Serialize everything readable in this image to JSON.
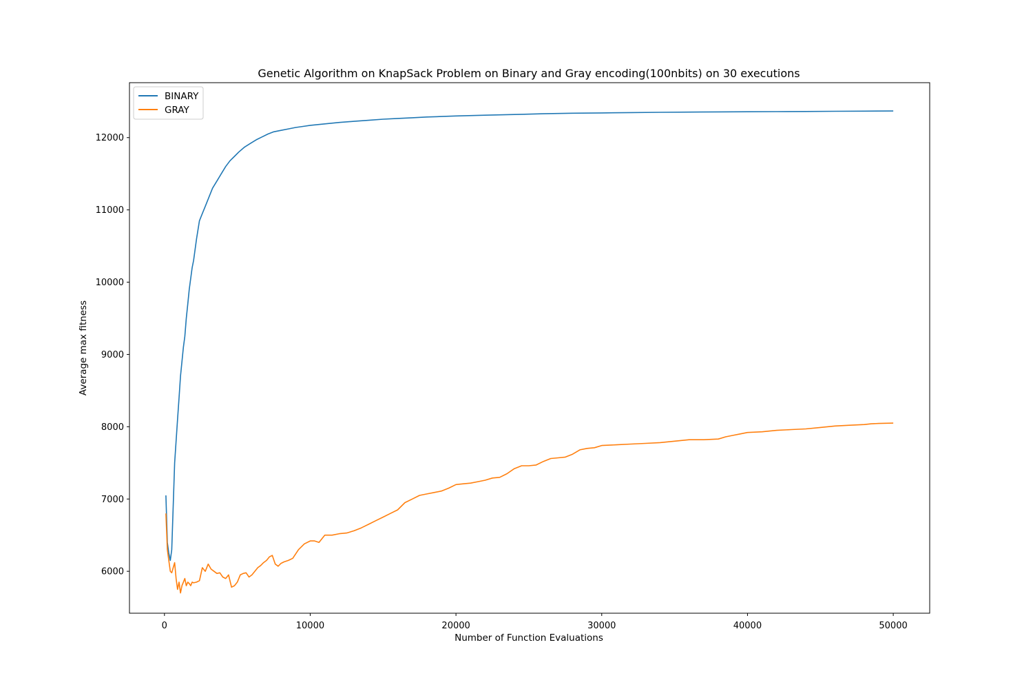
{
  "chart_data": {
    "type": "line",
    "title": "Genetic Algorithm on KnapSack Problem on Binary and Gray encoding(100nbits) on 30 executions",
    "xlabel": "Number of Function Evaluations",
    "ylabel": "Average max fitness",
    "xlim": [
      -2400,
      52500
    ],
    "ylim": [
      5420,
      12760
    ],
    "xticks": [
      0,
      10000,
      20000,
      30000,
      40000,
      50000
    ],
    "yticks": [
      6000,
      7000,
      8000,
      9000,
      10000,
      11000,
      12000
    ],
    "grid": false,
    "legend_position": "top-left",
    "series": [
      {
        "name": "BINARY",
        "color": "#1f77b4",
        "x": [
          100,
          200,
          300,
          400,
          500,
          600,
          700,
          800,
          900,
          1000,
          1100,
          1200,
          1300,
          1400,
          1500,
          1600,
          1700,
          1800,
          1900,
          2000,
          2200,
          2400,
          2600,
          2800,
          3000,
          3300,
          3600,
          3900,
          4200,
          4500,
          4800,
          5100,
          5500,
          5900,
          6300,
          6700,
          7100,
          7500,
          8000,
          8500,
          9000,
          9500,
          10000,
          11000,
          12000,
          13000,
          14000,
          15000,
          16000,
          17000,
          18000,
          19000,
          20000,
          22000,
          24000,
          26000,
          28000,
          30000,
          32000,
          34000,
          36000,
          38000,
          40000,
          42000,
          44000,
          46000,
          48000,
          50000
        ],
        "y": [
          7050,
          6400,
          6250,
          6150,
          6300,
          6900,
          7500,
          7800,
          8100,
          8400,
          8700,
          8900,
          9100,
          9250,
          9500,
          9700,
          9900,
          10050,
          10200,
          10300,
          10600,
          10850,
          10950,
          11050,
          11150,
          11300,
          11400,
          11500,
          11600,
          11680,
          11740,
          11800,
          11870,
          11920,
          11970,
          12010,
          12050,
          12080,
          12100,
          12120,
          12140,
          12155,
          12170,
          12190,
          12210,
          12225,
          12240,
          12255,
          12265,
          12275,
          12285,
          12292,
          12300,
          12310,
          12320,
          12330,
          12338,
          12342,
          12346,
          12350,
          12353,
          12356,
          12358,
          12360,
          12362,
          12364,
          12366,
          12368
        ]
      },
      {
        "name": "GRAY",
        "color": "#ff7f0e",
        "x": [
          100,
          200,
          300,
          400,
          500,
          600,
          700,
          800,
          900,
          1000,
          1100,
          1200,
          1300,
          1400,
          1500,
          1600,
          1700,
          1800,
          1900,
          2000,
          2200,
          2400,
          2600,
          2800,
          3000,
          3200,
          3400,
          3600,
          3800,
          4000,
          4200,
          4400,
          4600,
          4800,
          5000,
          5200,
          5400,
          5600,
          5800,
          6000,
          6200,
          6400,
          6600,
          6800,
          7000,
          7200,
          7400,
          7600,
          7800,
          8000,
          8200,
          8500,
          8800,
          9200,
          9600,
          10000,
          10300,
          10600,
          11000,
          11500,
          12000,
          12500,
          13000,
          13500,
          14000,
          14500,
          15000,
          15500,
          16000,
          16500,
          17000,
          17500,
          18000,
          18500,
          19000,
          19500,
          20000,
          20500,
          21000,
          21500,
          22000,
          22500,
          23000,
          23500,
          24000,
          24500,
          25000,
          25500,
          26000,
          26500,
          27000,
          27500,
          28000,
          28500,
          29000,
          29500,
          30000,
          31000,
          32000,
          33000,
          34000,
          35000,
          36000,
          37000,
          38000,
          38500,
          39000,
          39500,
          40000,
          41000,
          42000,
          43000,
          44000,
          45000,
          46000,
          47000,
          48000,
          48500,
          49000,
          50000
        ],
        "y": [
          6800,
          6300,
          6150,
          6000,
          5980,
          6050,
          6120,
          5900,
          5750,
          5850,
          5700,
          5800,
          5850,
          5900,
          5800,
          5850,
          5830,
          5800,
          5850,
          5840,
          5850,
          5870,
          6050,
          6000,
          6100,
          6030,
          6000,
          5970,
          5980,
          5920,
          5900,
          5950,
          5780,
          5800,
          5850,
          5950,
          5970,
          5980,
          5920,
          5950,
          6000,
          6050,
          6080,
          6120,
          6150,
          6200,
          6220,
          6100,
          6070,
          6110,
          6130,
          6150,
          6180,
          6300,
          6380,
          6420,
          6420,
          6400,
          6500,
          6500,
          6520,
          6530,
          6560,
          6600,
          6650,
          6700,
          6750,
          6800,
          6850,
          6950,
          7000,
          7050,
          7070,
          7090,
          7110,
          7150,
          7200,
          7210,
          7220,
          7240,
          7260,
          7290,
          7300,
          7350,
          7420,
          7460,
          7460,
          7470,
          7520,
          7560,
          7570,
          7580,
          7620,
          7680,
          7700,
          7710,
          7740,
          7750,
          7760,
          7770,
          7780,
          7800,
          7820,
          7820,
          7830,
          7860,
          7880,
          7900,
          7920,
          7930,
          7950,
          7960,
          7970,
          7990,
          8010,
          8020,
          8030,
          8040,
          8045,
          8050
        ]
      }
    ]
  }
}
